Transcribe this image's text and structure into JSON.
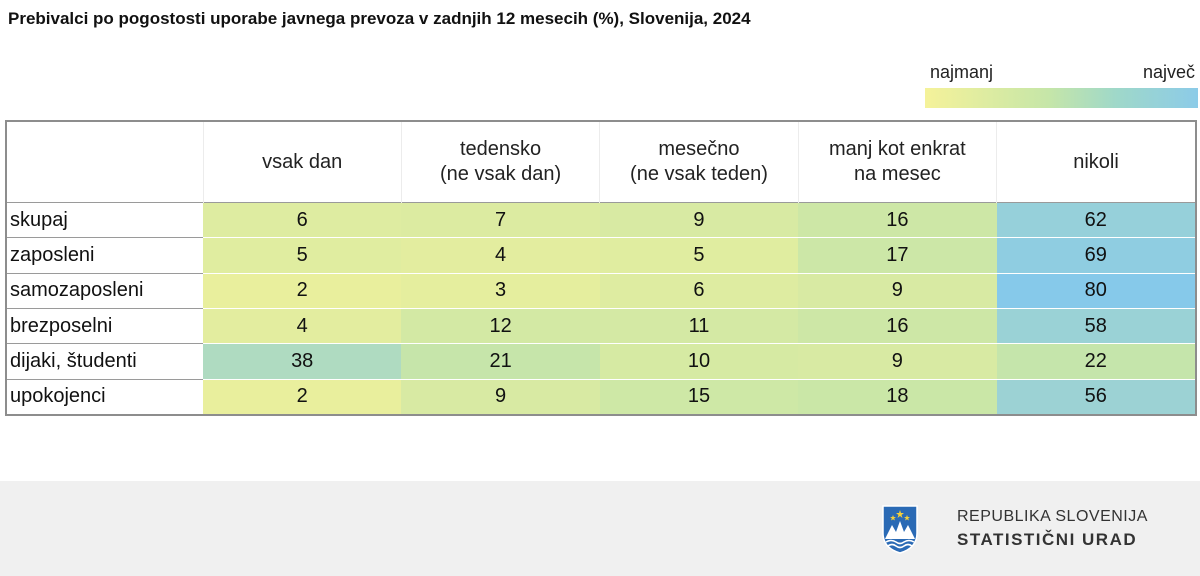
{
  "title": "Prebivalci po pogostosti uporabe javnega prevoza v zadnjih 12 mesecih (%), Slovenija, 2024",
  "legend": {
    "min_label": "najmanj",
    "max_label": "največ"
  },
  "chart_data": {
    "type": "heatmap",
    "title": "Prebivalci po pogostosti uporabe javnega prevoza v zadnjih 12 mesecih (%), Slovenija, 2024",
    "columns": [
      [
        "vsak dan"
      ],
      [
        "tedensko",
        "(ne vsak dan)"
      ],
      [
        "mesečno",
        "(ne vsak teden)"
      ],
      [
        "manj kot enkrat",
        "na mesec"
      ],
      [
        "nikoli"
      ]
    ],
    "rows": [
      {
        "label": "skupaj",
        "values": [
          6,
          7,
          9,
          16,
          62
        ]
      },
      {
        "label": "zaposleni",
        "values": [
          5,
          4,
          5,
          17,
          69
        ]
      },
      {
        "label": "samozaposleni",
        "values": [
          2,
          3,
          6,
          9,
          80
        ]
      },
      {
        "label": "brezposelni",
        "values": [
          4,
          12,
          11,
          16,
          58
        ]
      },
      {
        "label": "dijaki, študenti",
        "values": [
          38,
          21,
          10,
          9,
          22
        ]
      },
      {
        "label": "upokojenci",
        "values": [
          2,
          9,
          15,
          18,
          56
        ]
      }
    ],
    "color_scale": {
      "low": "#f8f398",
      "mid": "#c8e6a8",
      "high": "#86c9ea"
    }
  },
  "footer": {
    "org_line1": "REPUBLIKA SLOVENIJA",
    "org_line2": "STATISTIČNI URAD",
    "logo_icon": "coat-of-arms-icon"
  }
}
